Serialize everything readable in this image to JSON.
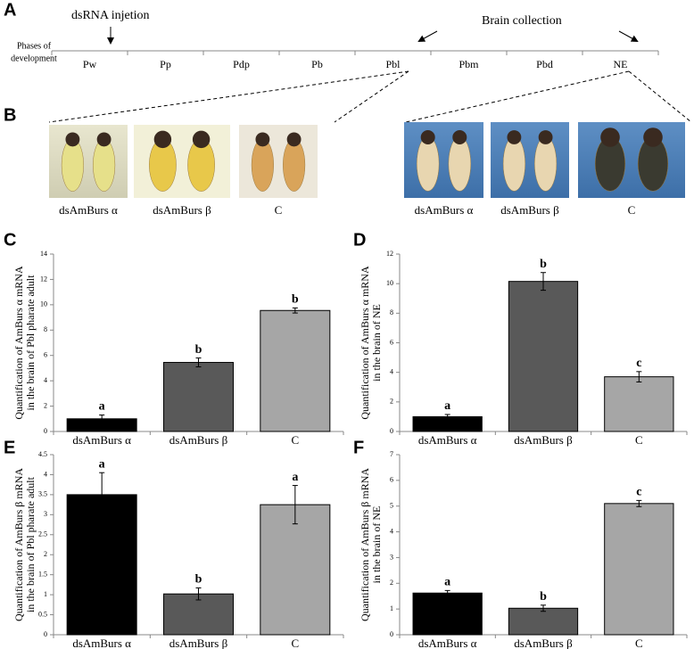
{
  "panel_a": {
    "label": "A",
    "injection": "dsRNA injetion",
    "collection": "Brain collection",
    "phases_label": [
      "Phases of",
      "development"
    ],
    "phases": [
      "Pw",
      "Pp",
      "Pdp",
      "Pb",
      "Pbl",
      "Pbm",
      "Pbd",
      "NE"
    ]
  },
  "panel_b": {
    "label": "B",
    "photo_labels": [
      "dsAmBurs α",
      "dsAmBurs β",
      "C",
      "dsAmBurs α",
      "dsAmBurs β",
      "C"
    ]
  },
  "chart_data": [
    {
      "type": "bar",
      "panel": "C",
      "ylabel": [
        "Quantification of AmBurs α mRNA",
        "in the brain of Pbl pharate adult"
      ],
      "categories": [
        "dsAmBurs α",
        "dsAmBurs β",
        "C"
      ],
      "values": [
        1.0,
        5.45,
        9.55
      ],
      "errors": [
        0.3,
        0.35,
        0.2
      ],
      "annotations": [
        "a",
        "b",
        "b"
      ],
      "colors": [
        "#000000",
        "#595959",
        "#a6a6a6"
      ],
      "ylim": [
        0,
        14
      ],
      "yticks": [
        0,
        2,
        4,
        6,
        8,
        10,
        12,
        14
      ]
    },
    {
      "type": "bar",
      "panel": "D",
      "ylabel": [
        "Quantification of AmBurs α mRNA",
        "in the brain of NE"
      ],
      "categories": [
        "dsAmBurs α",
        "dsAmBurs β",
        "C"
      ],
      "values": [
        1.0,
        10.15,
        3.7
      ],
      "errors": [
        0.15,
        0.6,
        0.35
      ],
      "annotations": [
        "a",
        "b",
        "c"
      ],
      "colors": [
        "#000000",
        "#595959",
        "#a6a6a6"
      ],
      "ylim": [
        0,
        12
      ],
      "yticks": [
        0,
        2,
        4,
        6,
        8,
        10,
        12
      ]
    },
    {
      "type": "bar",
      "panel": "E",
      "ylabel": [
        "Quantification of AmBurs β mRNA",
        "in the brain of Pbl pharate adult"
      ],
      "categories": [
        "dsAmBurs α",
        "dsAmBurs β",
        "C"
      ],
      "values": [
        3.5,
        1.02,
        3.25
      ],
      "errors": [
        0.55,
        0.15,
        0.48
      ],
      "annotations": [
        "a",
        "b",
        "a"
      ],
      "colors": [
        "#000000",
        "#595959",
        "#a6a6a6"
      ],
      "ylim": [
        0,
        4.5
      ],
      "yticks": [
        0,
        0.5,
        1,
        1.5,
        2,
        2.5,
        3,
        3.5,
        4,
        4.5
      ]
    },
    {
      "type": "bar",
      "panel": "F",
      "ylabel": [
        "Quantification of AmBurs β mRNA",
        "in the brain of NE"
      ],
      "categories": [
        "dsAmBurs α",
        "dsAmBurs β",
        "C"
      ],
      "values": [
        1.62,
        1.03,
        5.1
      ],
      "errors": [
        0.1,
        0.12,
        0.12
      ],
      "annotations": [
        "a",
        "b",
        "c"
      ],
      "colors": [
        "#000000",
        "#595959",
        "#a6a6a6"
      ],
      "ylim": [
        0,
        7
      ],
      "yticks": [
        0,
        1,
        2,
        3,
        4,
        5,
        6,
        7
      ]
    }
  ]
}
